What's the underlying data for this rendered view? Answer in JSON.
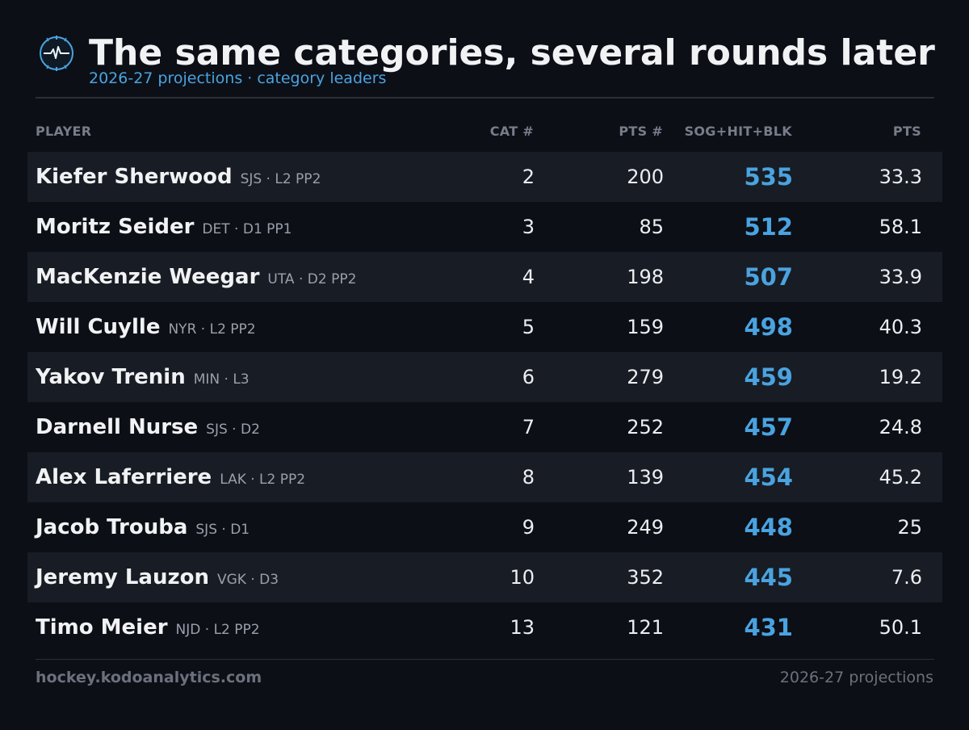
{
  "header": {
    "title": "The same categories, several rounds later",
    "subtitle": "2026-27 projections · category leaders"
  },
  "columns": {
    "player": "PLAYER",
    "cat": "CAT #",
    "pts_rank": "PTS #",
    "combined": "SOG+HIT+BLK",
    "pts": "PTS"
  },
  "footer": {
    "site": "hockey.kodoanalytics.com",
    "note": "2026-27 projections"
  },
  "colors": {
    "background": "#0c0f16",
    "accent": "#4aa3e0",
    "row_alt": "#181c24"
  },
  "chart_data": {
    "type": "table",
    "columns": [
      "PLAYER",
      "CAT #",
      "PTS #",
      "SOG+HIT+BLK",
      "PTS"
    ],
    "rows": [
      {
        "name": "Kiefer Sherwood",
        "meta": "SJS · L2 PP2",
        "cat": "2",
        "pts_rank": "200",
        "combined": "535",
        "pts": "33.3"
      },
      {
        "name": "Moritz Seider",
        "meta": "DET · D1 PP1",
        "cat": "3",
        "pts_rank": "85",
        "combined": "512",
        "pts": "58.1"
      },
      {
        "name": "MacKenzie Weegar",
        "meta": "UTA · D2 PP2",
        "cat": "4",
        "pts_rank": "198",
        "combined": "507",
        "pts": "33.9"
      },
      {
        "name": "Will Cuylle",
        "meta": "NYR · L2 PP2",
        "cat": "5",
        "pts_rank": "159",
        "combined": "498",
        "pts": "40.3"
      },
      {
        "name": "Yakov Trenin",
        "meta": "MIN · L3",
        "cat": "6",
        "pts_rank": "279",
        "combined": "459",
        "pts": "19.2"
      },
      {
        "name": "Darnell Nurse",
        "meta": "SJS · D2",
        "cat": "7",
        "pts_rank": "252",
        "combined": "457",
        "pts": "24.8"
      },
      {
        "name": "Alex Laferriere",
        "meta": "LAK · L2 PP2",
        "cat": "8",
        "pts_rank": "139",
        "combined": "454",
        "pts": "45.2"
      },
      {
        "name": "Jacob Trouba",
        "meta": "SJS · D1",
        "cat": "9",
        "pts_rank": "249",
        "combined": "448",
        "pts": "25"
      },
      {
        "name": "Jeremy Lauzon",
        "meta": "VGK · D3",
        "cat": "10",
        "pts_rank": "352",
        "combined": "445",
        "pts": "7.6"
      },
      {
        "name": "Timo Meier",
        "meta": "NJD · L2 PP2",
        "cat": "13",
        "pts_rank": "121",
        "combined": "431",
        "pts": "50.1"
      }
    ]
  }
}
